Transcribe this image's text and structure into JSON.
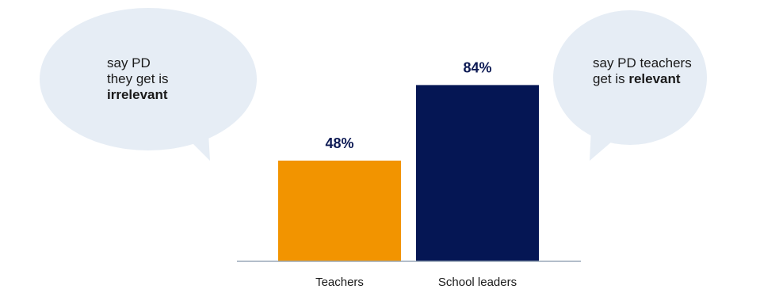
{
  "colors": {
    "bubble": "#e6edf5",
    "axis": "#9aa9b8",
    "label_text": "#0d1a54"
  },
  "callouts": {
    "left": {
      "lines": [
        "say PD",
        "they get is"
      ],
      "emphasis": "irrelevant"
    },
    "right": {
      "lines": [
        "say PD teachers"
      ],
      "prefix": "get is ",
      "emphasis": "relevant"
    }
  },
  "chart_data": {
    "type": "bar",
    "categories": [
      "Teachers",
      "School leaders"
    ],
    "values": [
      48,
      84
    ],
    "value_labels": [
      "48%",
      "84%"
    ],
    "colors": [
      "#f29400",
      "#051654"
    ],
    "ylim": [
      0,
      100
    ],
    "grid": false,
    "title": "",
    "xlabel": "",
    "ylabel": ""
  }
}
